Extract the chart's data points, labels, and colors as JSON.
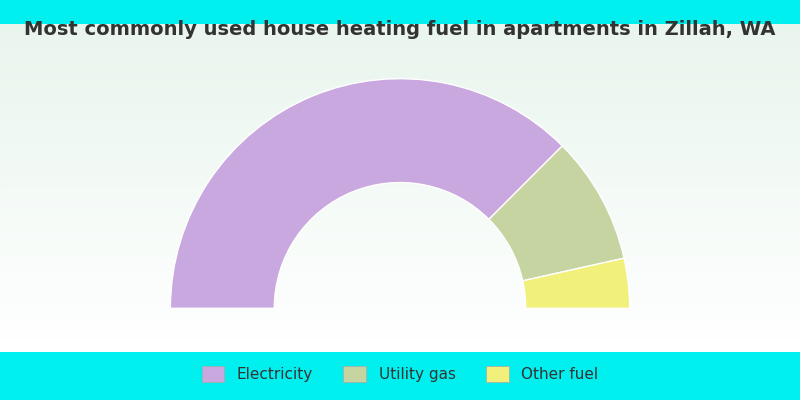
{
  "title": "Most commonly used house heating fuel in apartments in Zillah, WA",
  "segments": [
    {
      "label": "Electricity",
      "value": 75.0,
      "color": "#C9A8E0"
    },
    {
      "label": "Utility gas",
      "value": 18.0,
      "color": "#C5D4A0"
    },
    {
      "label": "Other fuel",
      "value": 7.0,
      "color": "#F0F07A"
    }
  ],
  "background_color": "#00EFEF",
  "chart_bg_color_top": "#E8F5EE",
  "chart_bg_color_bottom": "#F5FBF7",
  "title_color": "#333333",
  "title_fontsize": 14,
  "legend_fontsize": 11,
  "r_outer": 0.42,
  "r_inner": 0.23
}
